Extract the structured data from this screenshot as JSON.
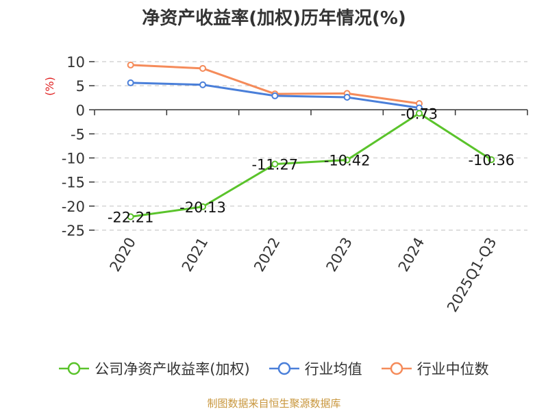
{
  "title": "净资产收益率(加权)历年情况(%)",
  "source": "制图数据来自恒生聚源数据库",
  "colors": {
    "company": "#5ac32b",
    "industry_avg": "#4a7fd9",
    "industry_median": "#f58b5a",
    "grid": "#cccccc",
    "axis": "#333333",
    "unit": "#e02020"
  },
  "chart_data": {
    "type": "line",
    "ylabel": "(%)",
    "ylim": [
      -25,
      10
    ],
    "yticks": [
      10,
      5,
      0,
      -5,
      -10,
      -15,
      -20,
      -25
    ],
    "ytick_labels": [
      "10",
      "5",
      "0",
      "-5",
      "-10",
      "-15",
      "-20",
      "-25"
    ],
    "categories": [
      "2020",
      "2021",
      "2022",
      "2023",
      "2024",
      "2025Q1-Q3"
    ],
    "grid": true,
    "legend_position": "bottom",
    "series": [
      {
        "name": "公司净资产收益率(加权)",
        "color": "#5ac32b",
        "values": [
          -22.21,
          -20.13,
          -11.27,
          -10.42,
          -0.73,
          -10.36
        ],
        "labels": [
          "-22.21",
          "-20.13",
          "-11.27",
          "-10.42",
          "-0.73",
          "-10.36"
        ]
      },
      {
        "name": "行业均值",
        "color": "#4a7fd9",
        "values": [
          5.6,
          5.2,
          2.9,
          2.6,
          0.4,
          null
        ]
      },
      {
        "name": "行业中位数",
        "color": "#f58b5a",
        "values": [
          9.3,
          8.6,
          3.3,
          3.4,
          1.3,
          null
        ]
      }
    ]
  }
}
